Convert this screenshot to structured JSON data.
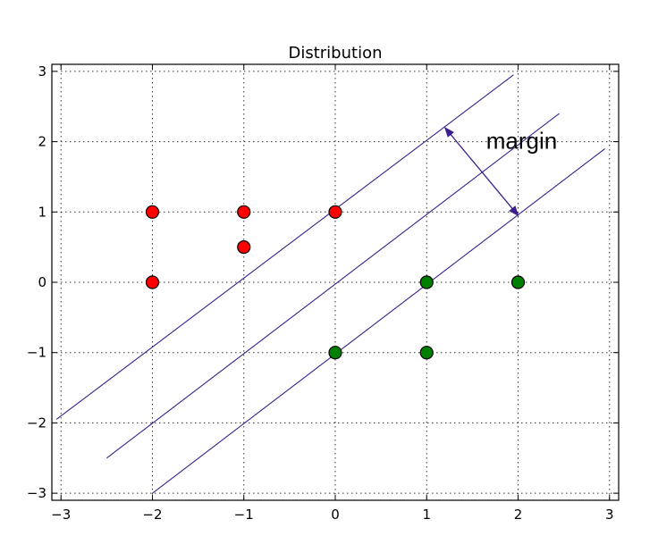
{
  "chart_data": {
    "type": "scatter",
    "title": "Distribution",
    "xlabel": "",
    "ylabel": "",
    "xlim": [
      -3.1,
      3.1
    ],
    "ylim": [
      -3.1,
      3.1
    ],
    "grid": true,
    "x_ticks": [
      -3,
      -2,
      -1,
      0,
      1,
      2,
      3
    ],
    "y_ticks": [
      -3,
      -2,
      -1,
      0,
      1,
      2,
      3
    ],
    "x_tick_labels": [
      "−3",
      "−2",
      "−1",
      "0",
      "1",
      "2",
      "3"
    ],
    "y_tick_labels": [
      "−3",
      "−2",
      "−1",
      "0",
      "1",
      "2",
      "3"
    ],
    "series": [
      {
        "color": "#ff0000",
        "points": [
          [
            -2,
            1
          ],
          [
            -1,
            1
          ],
          [
            0,
            1
          ],
          [
            -1,
            0.5
          ],
          [
            -2,
            0
          ]
        ]
      },
      {
        "color": "#008000",
        "points": [
          [
            1,
            0
          ],
          [
            2,
            0
          ],
          [
            0,
            -1
          ],
          [
            1,
            -1
          ]
        ]
      }
    ],
    "lines": [
      {
        "color": "#3c1f8c",
        "from": [
          -3.05,
          -1.95
        ],
        "to": [
          1.95,
          2.95
        ]
      },
      {
        "color": "#3c1f8c",
        "from": [
          -2.5,
          -2.5
        ],
        "to": [
          2.45,
          2.4
        ]
      },
      {
        "color": "#3c1f8c",
        "from": [
          -2.0,
          -3.0
        ],
        "to": [
          2.95,
          1.9
        ]
      }
    ],
    "annotations": [
      {
        "text": "margin",
        "text_at": [
          1.65,
          1.9
        ],
        "arrow_from": [
          1.2,
          2.2
        ],
        "arrow_to": [
          2.0,
          0.95
        ],
        "arrow_color": "#3c1f8c"
      }
    ]
  }
}
